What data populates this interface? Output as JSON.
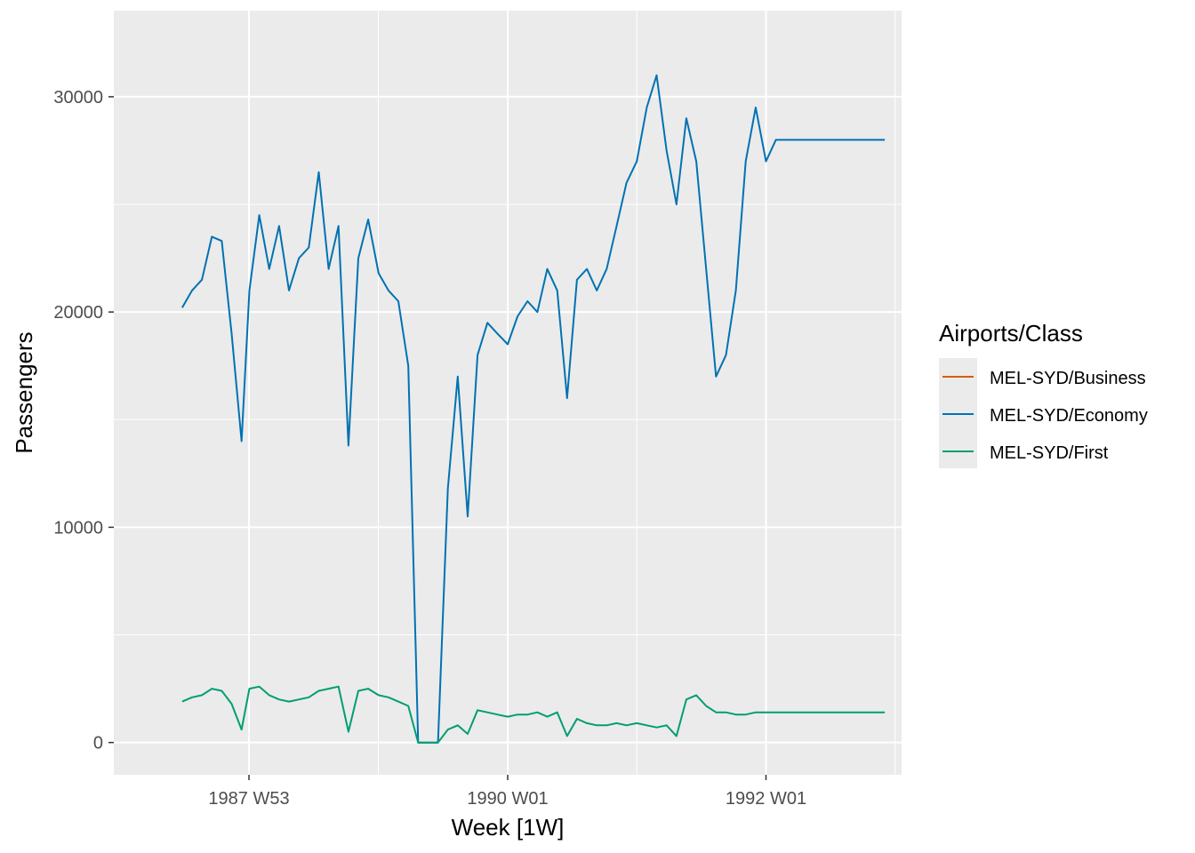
{
  "chart_data": {
    "type": "line",
    "xlabel": "Week [1W]",
    "ylabel": "Passengers",
    "x_ticks": [
      "1987 W53",
      "1990 W01",
      "1992 W01"
    ],
    "y_ticks": [
      0,
      10000,
      20000,
      30000
    ],
    "ylim": [
      -1500,
      34000
    ],
    "grid": true,
    "legend_title": "Airports/Class",
    "legend_position": "right",
    "x": [
      "1987 W26",
      "1987 W30",
      "1987 W34",
      "1987 W38",
      "1987 W42",
      "1987 W46",
      "1987 W50",
      "1988 W01",
      "1988 W05",
      "1988 W09",
      "1988 W13",
      "1988 W17",
      "1988 W21",
      "1988 W25",
      "1988 W29",
      "1988 W33",
      "1988 W37",
      "1988 W41",
      "1988 W45",
      "1988 W49",
      "1989 W01",
      "1989 W05",
      "1989 W09",
      "1989 W13",
      "1989 W17",
      "1989 W21",
      "1989 W25",
      "1989 W29",
      "1989 W33",
      "1989 W37",
      "1989 W41",
      "1989 W45",
      "1989 W49",
      "1990 W01",
      "1990 W05",
      "1990 W09",
      "1990 W13",
      "1990 W17",
      "1990 W21",
      "1990 W25",
      "1990 W29",
      "1990 W33",
      "1990 W37",
      "1990 W41",
      "1990 W45",
      "1990 W49",
      "1991 W01",
      "1991 W05",
      "1991 W09",
      "1991 W13",
      "1991 W17",
      "1991 W21",
      "1991 W25",
      "1991 W29",
      "1991 W33",
      "1991 W37",
      "1991 W41",
      "1991 W45",
      "1991 W49",
      "1992 W01",
      "1992 W05",
      "1992 W09",
      "1992 W13",
      "1992 W17",
      "1992 W21",
      "1992 W25",
      "1992 W29",
      "1992 W33",
      "1992 W37",
      "1992 W41",
      "1992 W45",
      "1992 W49"
    ],
    "series": [
      {
        "name": "MEL-SYD/Business",
        "color": "#D55E00",
        "values": [
          null,
          null,
          null,
          null,
          null,
          null,
          null,
          null,
          null,
          null,
          null,
          null,
          null,
          null,
          null,
          null,
          null,
          null,
          null,
          null,
          null,
          null,
          null,
          null,
          null,
          null,
          null,
          null,
          null,
          null,
          null,
          null,
          null,
          null,
          null,
          null,
          null,
          null,
          null,
          null,
          null,
          null,
          null,
          null,
          null,
          null,
          null,
          null,
          null,
          null,
          null,
          null,
          null,
          null,
          null,
          null,
          null,
          null,
          null,
          null,
          null,
          null,
          null,
          null,
          null,
          null,
          null,
          null,
          null,
          null,
          null,
          null
        ]
      },
      {
        "name": "MEL-SYD/Economy",
        "color": "#0072B2",
        "values": [
          20200,
          21000,
          21500,
          23500,
          23300,
          19000,
          14000,
          21000,
          24500,
          22000,
          24000,
          21000,
          22500,
          23000,
          26500,
          22000,
          24000,
          13800,
          22500,
          24300,
          21800,
          21000,
          20500,
          17500,
          0,
          0,
          0,
          11800,
          17000,
          10500,
          18000,
          19500,
          19000,
          18500,
          19800,
          20500,
          20000,
          22000,
          21000,
          16000,
          21500,
          22000,
          21000,
          22000,
          24000,
          26000,
          27000,
          29500,
          31000,
          27500,
          25000,
          29000,
          27000,
          22000,
          17000,
          18000,
          21000,
          27000,
          29500,
          27000,
          28000,
          28000,
          28000,
          28000,
          28000,
          28000,
          28000,
          28000,
          28000,
          28000,
          28000,
          28000
        ]
      },
      {
        "name": "MEL-SYD/First",
        "color": "#009E73",
        "values": [
          1900,
          2100,
          2200,
          2500,
          2400,
          1800,
          600,
          2500,
          2600,
          2200,
          2000,
          1900,
          2000,
          2100,
          2400,
          2500,
          2600,
          500,
          2400,
          2500,
          2200,
          2100,
          1900,
          1700,
          0,
          0,
          0,
          600,
          800,
          400,
          1500,
          1400,
          1300,
          1200,
          1300,
          1300,
          1400,
          1200,
          1400,
          300,
          1100,
          900,
          800,
          800,
          900,
          800,
          900,
          800,
          700,
          800,
          300,
          2000,
          2200,
          1700,
          1400,
          1400,
          1300,
          1300,
          1400,
          1400,
          1400,
          1400,
          1400,
          1400,
          1400,
          1400,
          1400,
          1400,
          1400,
          1400,
          1400,
          1400
        ]
      }
    ]
  }
}
